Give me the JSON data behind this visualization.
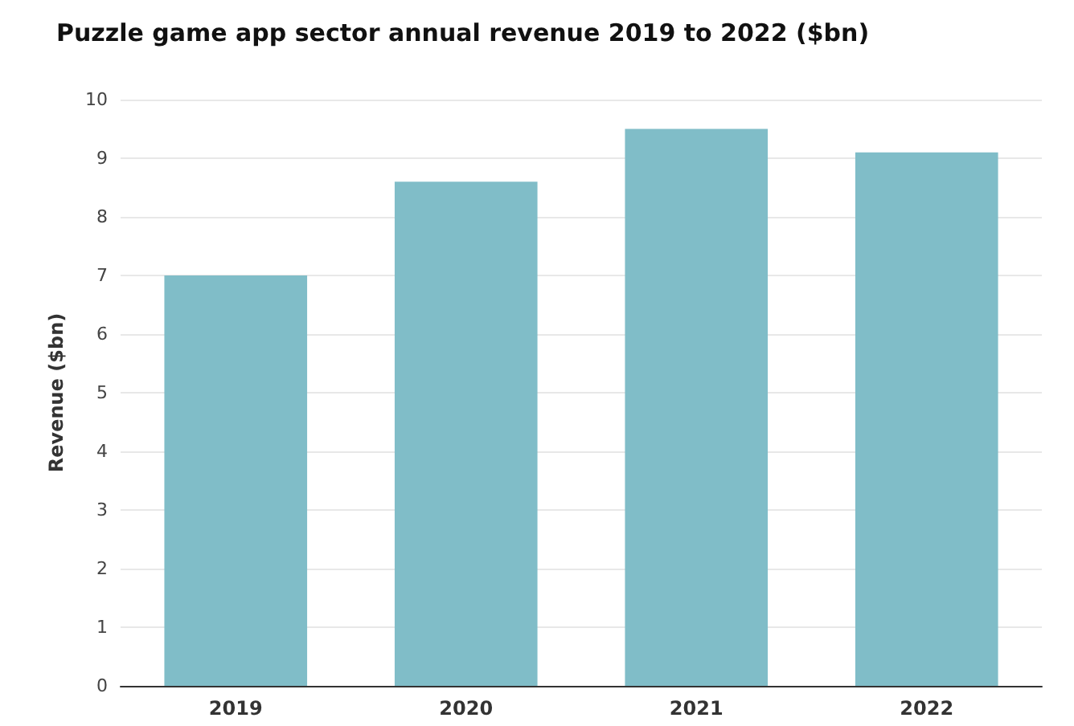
{
  "chart_data": {
    "type": "bar",
    "title": "Puzzle game app sector annual revenue 2019 to 2022 ($bn)",
    "ylabel": "Revenue ($bn)",
    "categories": [
      "2019",
      "2020",
      "2021",
      "2022"
    ],
    "values": [
      7.0,
      8.6,
      9.5,
      9.1
    ],
    "color": "#80bdc8",
    "ylim": [
      0,
      10
    ],
    "yticks": [
      0,
      1,
      2,
      3,
      4,
      5,
      6,
      7,
      8,
      9,
      10
    ],
    "grid": "y"
  }
}
